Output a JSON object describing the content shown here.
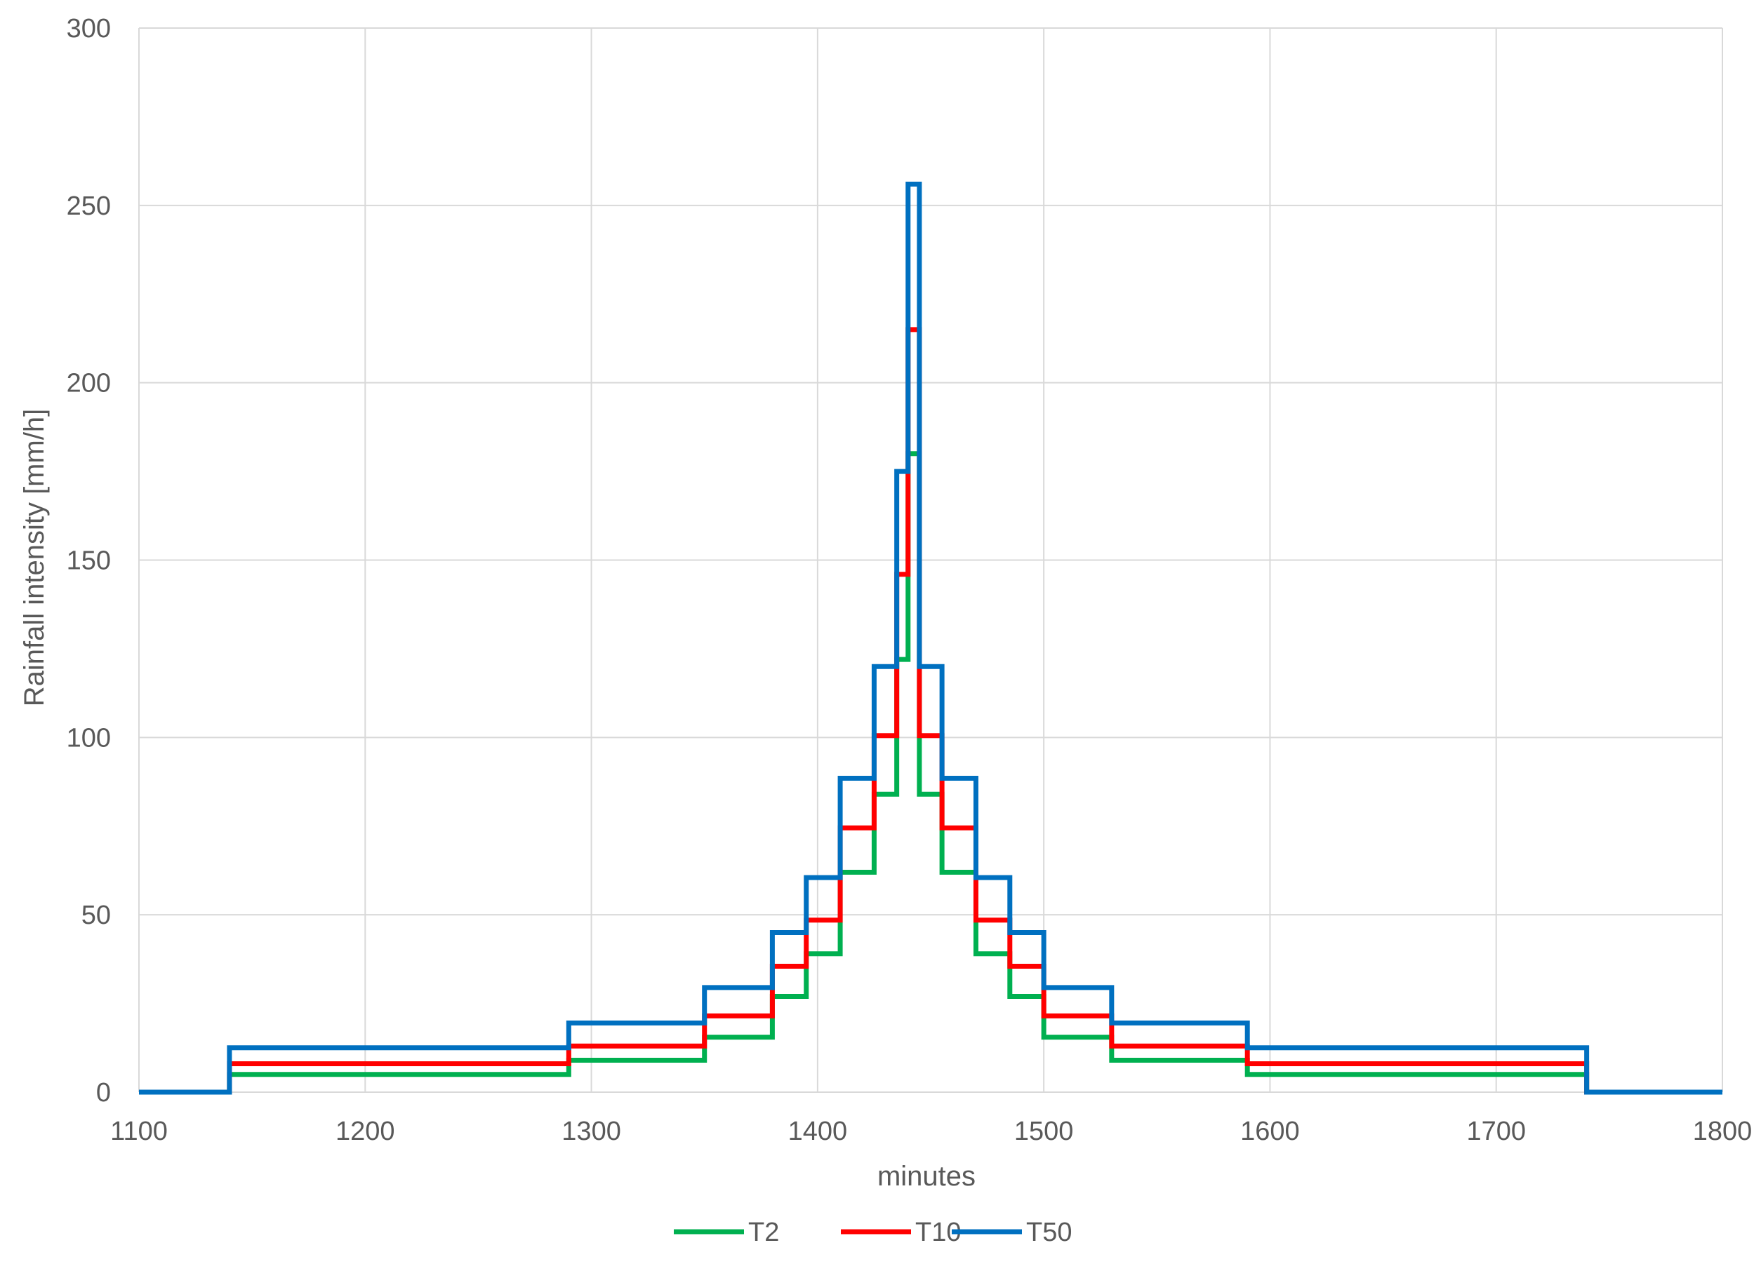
{
  "chart_data": {
    "type": "line",
    "title": "",
    "xlabel": "minutes",
    "ylabel": "Rainfall intensity [mm/h]",
    "xlim": [
      1100,
      1800
    ],
    "ylim": [
      0,
      300
    ],
    "xticks": [
      1100,
      1200,
      1300,
      1400,
      1500,
      1600,
      1700,
      1800
    ],
    "yticks": [
      0,
      50,
      100,
      150,
      200,
      250,
      300
    ],
    "grid": true,
    "legend_position": "bottom",
    "step": true,
    "series": [
      {
        "name": "T2",
        "color": "#00b050",
        "x": [
          1100,
          1140,
          1290,
          1350,
          1380,
          1395,
          1410,
          1425,
          1435,
          1440,
          1445,
          1455,
          1470,
          1485,
          1500,
          1530,
          1590,
          1740,
          1800
        ],
        "values": [
          0,
          5,
          9,
          15.5,
          27,
          39,
          62,
          84,
          122,
          180,
          84,
          62,
          39,
          27,
          15.5,
          9,
          5,
          0,
          0
        ]
      },
      {
        "name": "T10",
        "color": "#ff0000",
        "x": [
          1100,
          1140,
          1290,
          1350,
          1380,
          1395,
          1410,
          1425,
          1435,
          1440,
          1445,
          1455,
          1470,
          1485,
          1500,
          1530,
          1590,
          1740,
          1800
        ],
        "values": [
          0,
          8,
          13,
          21.5,
          35.5,
          48.5,
          74.5,
          100.5,
          146,
          215,
          100.5,
          74.5,
          48.5,
          35.5,
          21.5,
          13,
          8,
          0,
          0
        ]
      },
      {
        "name": "T50",
        "color": "#0070c0",
        "x": [
          1100,
          1140,
          1290,
          1350,
          1380,
          1395,
          1410,
          1425,
          1435,
          1440,
          1445,
          1455,
          1470,
          1485,
          1500,
          1530,
          1590,
          1740,
          1800
        ],
        "values": [
          0,
          12.5,
          19.5,
          29.5,
          45,
          60.5,
          88.5,
          120,
          175,
          256,
          120,
          88.5,
          60.5,
          45,
          29.5,
          19.5,
          12.5,
          0,
          0
        ]
      }
    ]
  }
}
